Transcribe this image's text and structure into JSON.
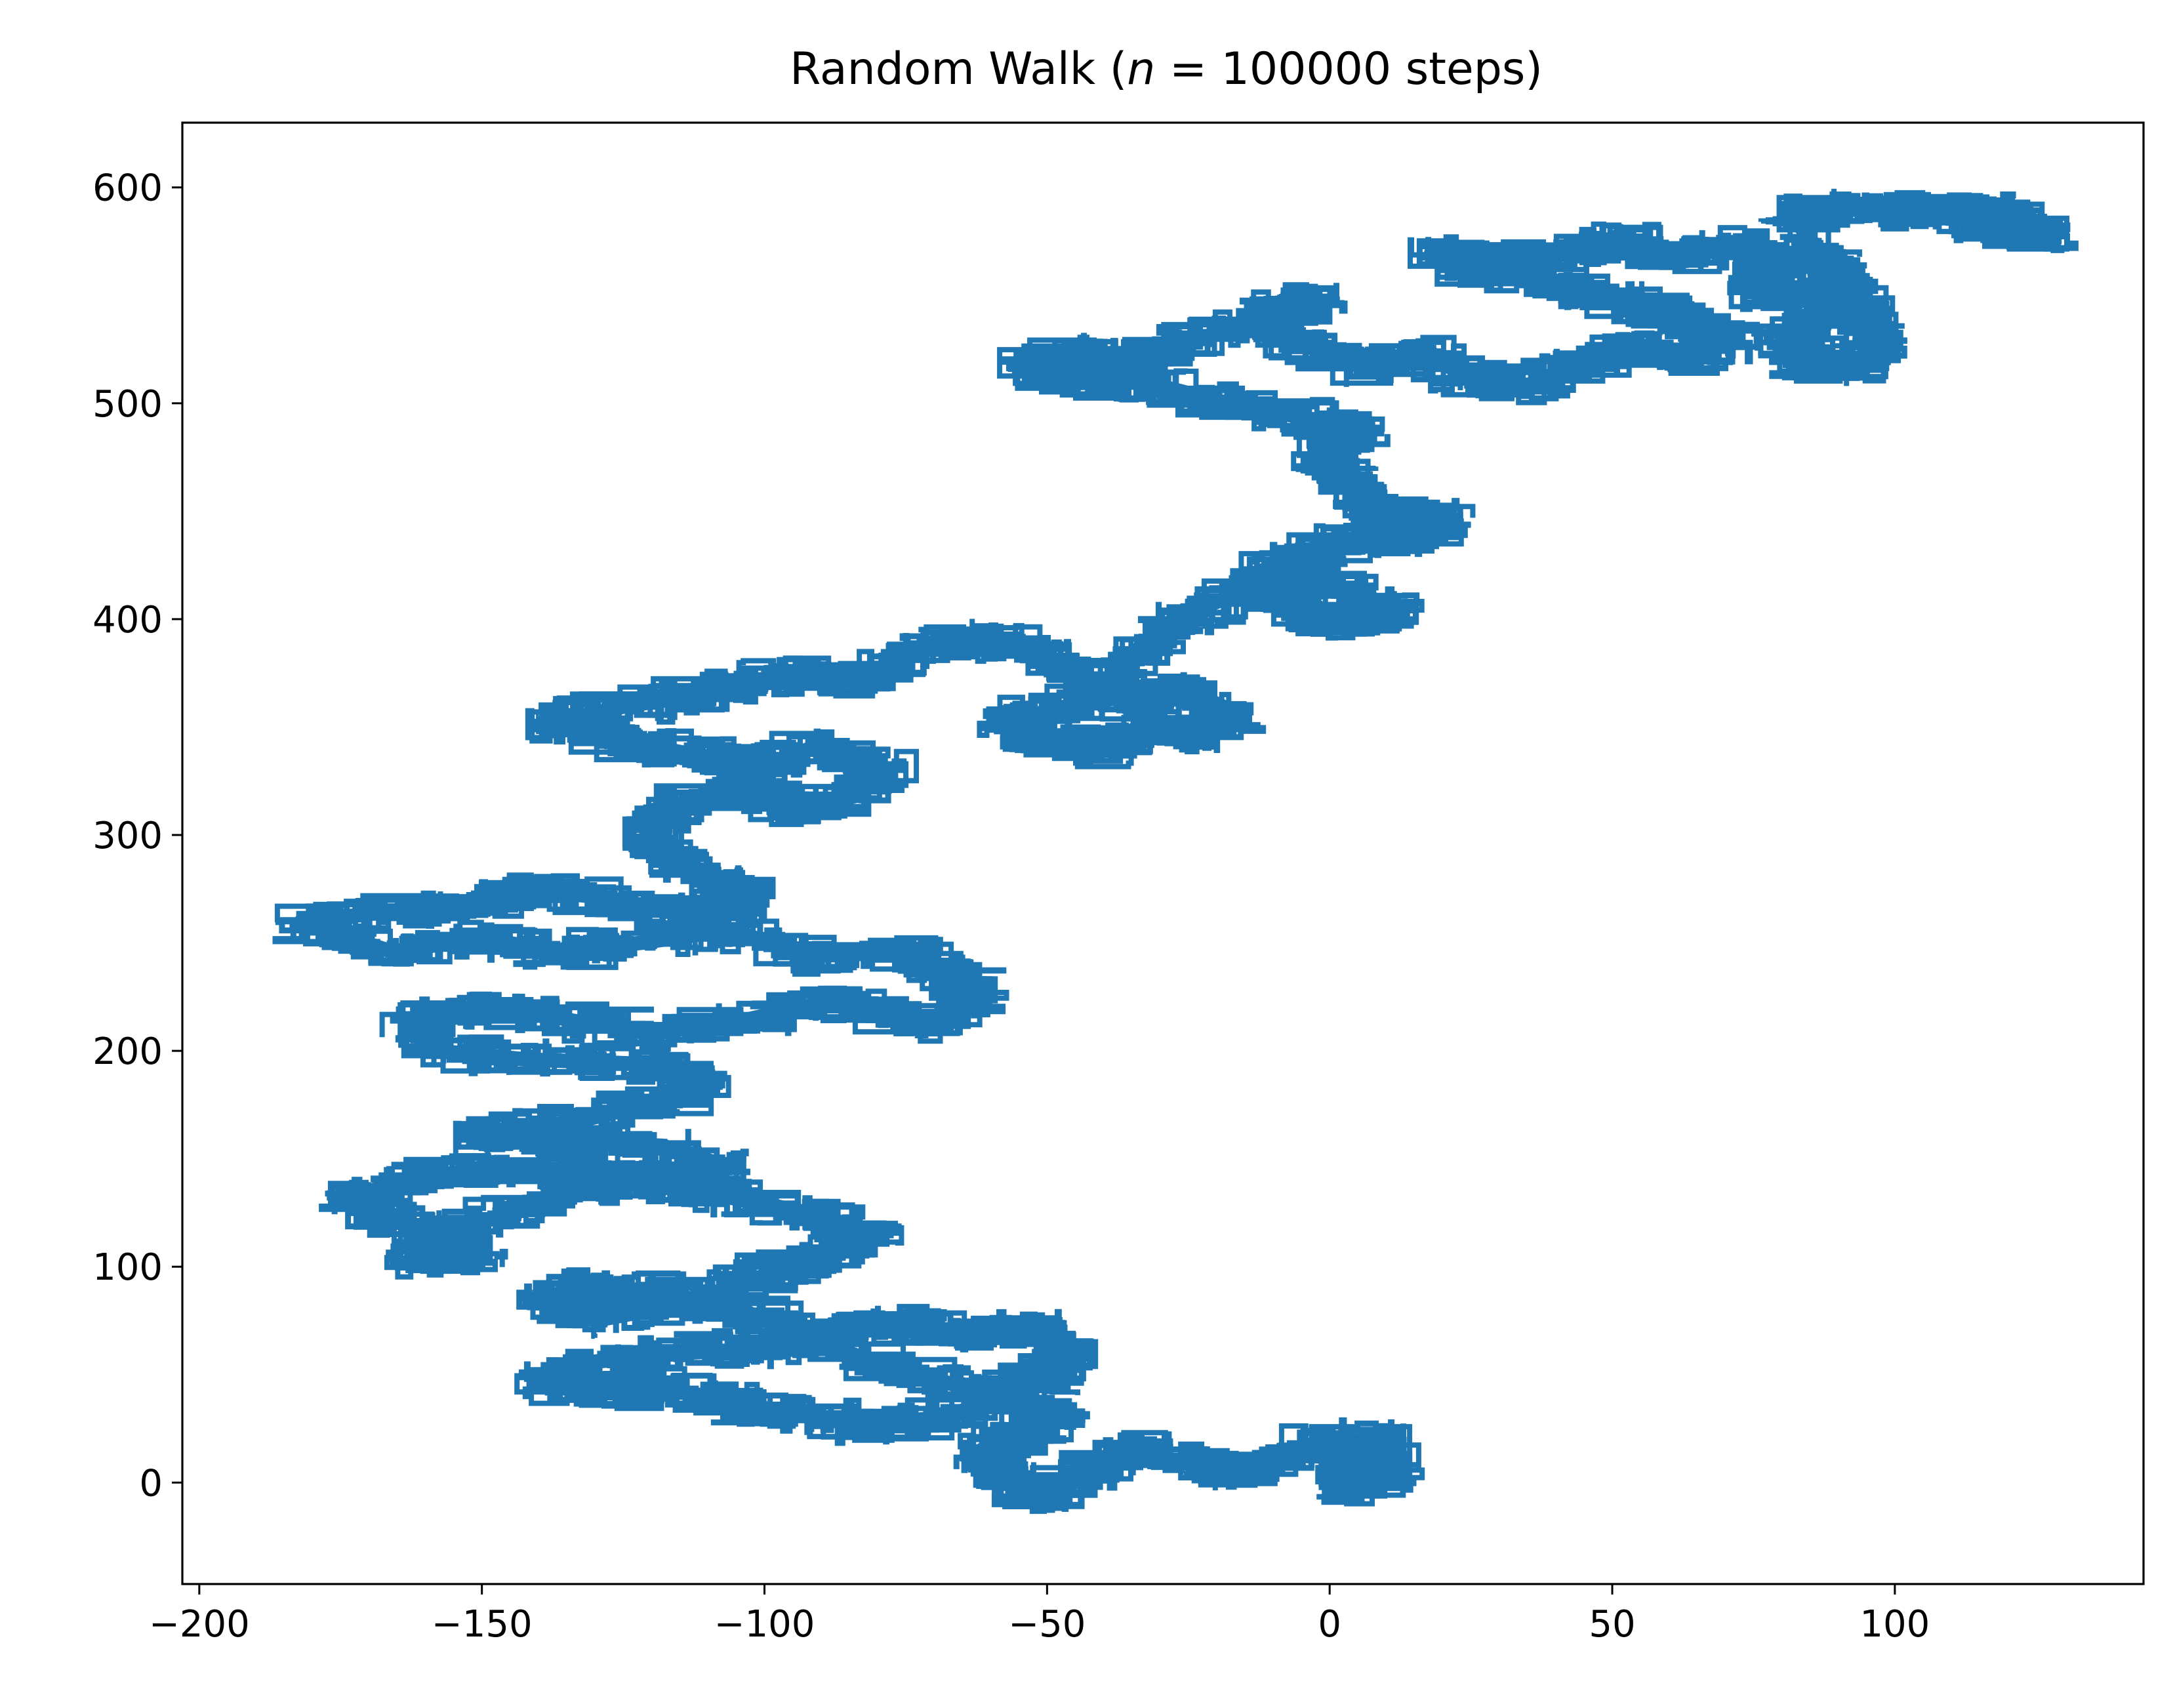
{
  "chart_data": {
    "type": "line",
    "title": "Random Walk (n = 100000 steps)",
    "title_parts": {
      "before": "Random Walk (",
      "var": "n",
      "eq": " = 100000 steps)"
    },
    "xlabel": "",
    "ylabel": "",
    "xlim": [
      -203,
      144
    ],
    "ylim": [
      -47,
      630
    ],
    "x_ticks": [
      -200,
      -150,
      -100,
      -50,
      0,
      50,
      100
    ],
    "x_tick_labels": [
      "−200",
      "−150",
      "−100",
      "−50",
      "0",
      "50",
      "100"
    ],
    "y_ticks": [
      0,
      100,
      200,
      300,
      400,
      500,
      600
    ],
    "y_tick_labels": [
      "0",
      "100",
      "200",
      "300",
      "400",
      "500",
      "600"
    ],
    "grid": false,
    "legend": "none",
    "line_color": "#1f77b4",
    "series": [
      {
        "approx_path": [
          [
            0,
            0
          ],
          [
            8,
            12
          ],
          [
            -3,
            18
          ],
          [
            13,
            8
          ],
          [
            3,
            -6
          ],
          [
            9,
            22
          ],
          [
            -8,
            12
          ],
          [
            -16,
            4
          ],
          [
            -28,
            10
          ],
          [
            -36,
            18
          ],
          [
            -44,
            4
          ],
          [
            -52,
            -8
          ],
          [
            -58,
            2
          ],
          [
            -62,
            14
          ],
          [
            -55,
            22
          ],
          [
            -47,
            30
          ],
          [
            -58,
            38
          ],
          [
            -70,
            30
          ],
          [
            -82,
            26
          ],
          [
            -95,
            32
          ],
          [
            -107,
            38
          ],
          [
            -118,
            44
          ],
          [
            -130,
            42
          ],
          [
            -140,
            48
          ],
          [
            -130,
            56
          ],
          [
            -115,
            60
          ],
          [
            -100,
            62
          ],
          [
            -88,
            70
          ],
          [
            -76,
            74
          ],
          [
            -64,
            68
          ],
          [
            -52,
            72
          ],
          [
            -46,
            60
          ],
          [
            -50,
            48
          ],
          [
            -62,
            42
          ],
          [
            -78,
            54
          ],
          [
            -92,
            66
          ],
          [
            -104,
            80
          ],
          [
            -118,
            88
          ],
          [
            -132,
            92
          ],
          [
            -140,
            84
          ],
          [
            -128,
            76
          ],
          [
            -112,
            84
          ],
          [
            -100,
            96
          ],
          [
            -88,
            104
          ],
          [
            -80,
            116
          ],
          [
            -94,
            126
          ],
          [
            -110,
            134
          ],
          [
            -126,
            140
          ],
          [
            -140,
            128
          ],
          [
            -154,
            118
          ],
          [
            -162,
            104
          ],
          [
            -150,
            106
          ],
          [
            -164,
            120
          ],
          [
            -175,
            132
          ],
          [
            -162,
            140
          ],
          [
            -150,
            146
          ],
          [
            -136,
            144
          ],
          [
            -124,
            140
          ],
          [
            -106,
            146
          ],
          [
            -118,
            156
          ],
          [
            -136,
            158
          ],
          [
            -152,
            160
          ],
          [
            -132,
            168
          ],
          [
            -116,
            178
          ],
          [
            -110,
            186
          ],
          [
            -122,
            194
          ],
          [
            -142,
            196
          ],
          [
            -158,
            200
          ],
          [
            -162,
            214
          ],
          [
            -148,
            222
          ],
          [
            -134,
            214
          ],
          [
            -120,
            208
          ],
          [
            -104,
            214
          ],
          [
            -90,
            222
          ],
          [
            -80,
            218
          ],
          [
            -70,
            212
          ],
          [
            -62,
            226
          ],
          [
            -68,
            236
          ],
          [
            -76,
            246
          ],
          [
            -92,
            244
          ],
          [
            -106,
            256
          ],
          [
            -122,
            250
          ],
          [
            -136,
            246
          ],
          [
            -150,
            252
          ],
          [
            -166,
            246
          ],
          [
            -182,
            260
          ],
          [
            -168,
            264
          ],
          [
            -152,
            268
          ],
          [
            -138,
            274
          ],
          [
            -126,
            270
          ],
          [
            -112,
            262
          ],
          [
            -102,
            272
          ],
          [
            -110,
            282
          ],
          [
            -118,
            292
          ],
          [
            -120,
            304
          ],
          [
            -114,
            316
          ],
          [
            -102,
            322
          ],
          [
            -94,
            312
          ],
          [
            -84,
            318
          ],
          [
            -78,
            330
          ],
          [
            -90,
            342
          ],
          [
            -100,
            332
          ],
          [
            -114,
            338
          ],
          [
            -126,
            344
          ],
          [
            -138,
            352
          ],
          [
            -124,
            360
          ],
          [
            -108,
            366
          ],
          [
            -96,
            374
          ],
          [
            -84,
            372
          ],
          [
            -72,
            386
          ],
          [
            -60,
            392
          ],
          [
            -50,
            382
          ],
          [
            -42,
            370
          ],
          [
            -34,
            360
          ],
          [
            -26,
            368
          ],
          [
            -16,
            356
          ],
          [
            -22,
            346
          ],
          [
            -34,
            350
          ],
          [
            -40,
            340
          ],
          [
            -50,
            344
          ],
          [
            -58,
            352
          ],
          [
            -46,
            360
          ],
          [
            -36,
            378
          ],
          [
            -30,
            394
          ],
          [
            -22,
            406
          ],
          [
            -12,
            416
          ],
          [
            -2,
            424
          ],
          [
            -10,
            410
          ],
          [
            4,
            414
          ],
          [
            12,
            404
          ],
          [
            4,
            398
          ],
          [
            -6,
            402
          ],
          [
            -14,
            420
          ],
          [
            -4,
            432
          ],
          [
            8,
            440
          ],
          [
            14,
            448
          ],
          [
            20,
            444
          ],
          [
            12,
            436
          ],
          [
            8,
            450
          ],
          [
            4,
            462
          ],
          [
            -2,
            476
          ],
          [
            6,
            486
          ],
          [
            -6,
            494
          ],
          [
            -18,
            500
          ],
          [
            -30,
            508
          ],
          [
            -42,
            512
          ],
          [
            -54,
            516
          ],
          [
            -46,
            524
          ],
          [
            -34,
            520
          ],
          [
            -24,
            530
          ],
          [
            -12,
            536
          ],
          [
            -2,
            548
          ],
          [
            -12,
            542
          ],
          [
            -6,
            528
          ],
          [
            8,
            516
          ],
          [
            16,
            522
          ],
          [
            26,
            512
          ],
          [
            36,
            508
          ],
          [
            44,
            520
          ],
          [
            54,
            526
          ],
          [
            64,
            520
          ],
          [
            72,
            530
          ],
          [
            62,
            540
          ],
          [
            50,
            548
          ],
          [
            40,
            556
          ],
          [
            30,
            566
          ],
          [
            18,
            570
          ],
          [
            28,
            560
          ],
          [
            40,
            568
          ],
          [
            52,
            576
          ],
          [
            60,
            568
          ],
          [
            72,
            574
          ],
          [
            80,
            562
          ],
          [
            74,
            552
          ],
          [
            86,
            548
          ],
          [
            96,
            540
          ],
          [
            98,
            526
          ],
          [
            90,
            516
          ],
          [
            80,
            522
          ],
          [
            84,
            536
          ],
          [
            94,
            552
          ],
          [
            88,
            566
          ],
          [
            82,
            586
          ],
          [
            94,
            592
          ],
          [
            106,
            588
          ],
          [
            116,
            590
          ],
          [
            122,
            584
          ],
          [
            128,
            578
          ],
          [
            120,
            580
          ],
          [
            112,
            584
          ]
        ]
      }
    ]
  }
}
